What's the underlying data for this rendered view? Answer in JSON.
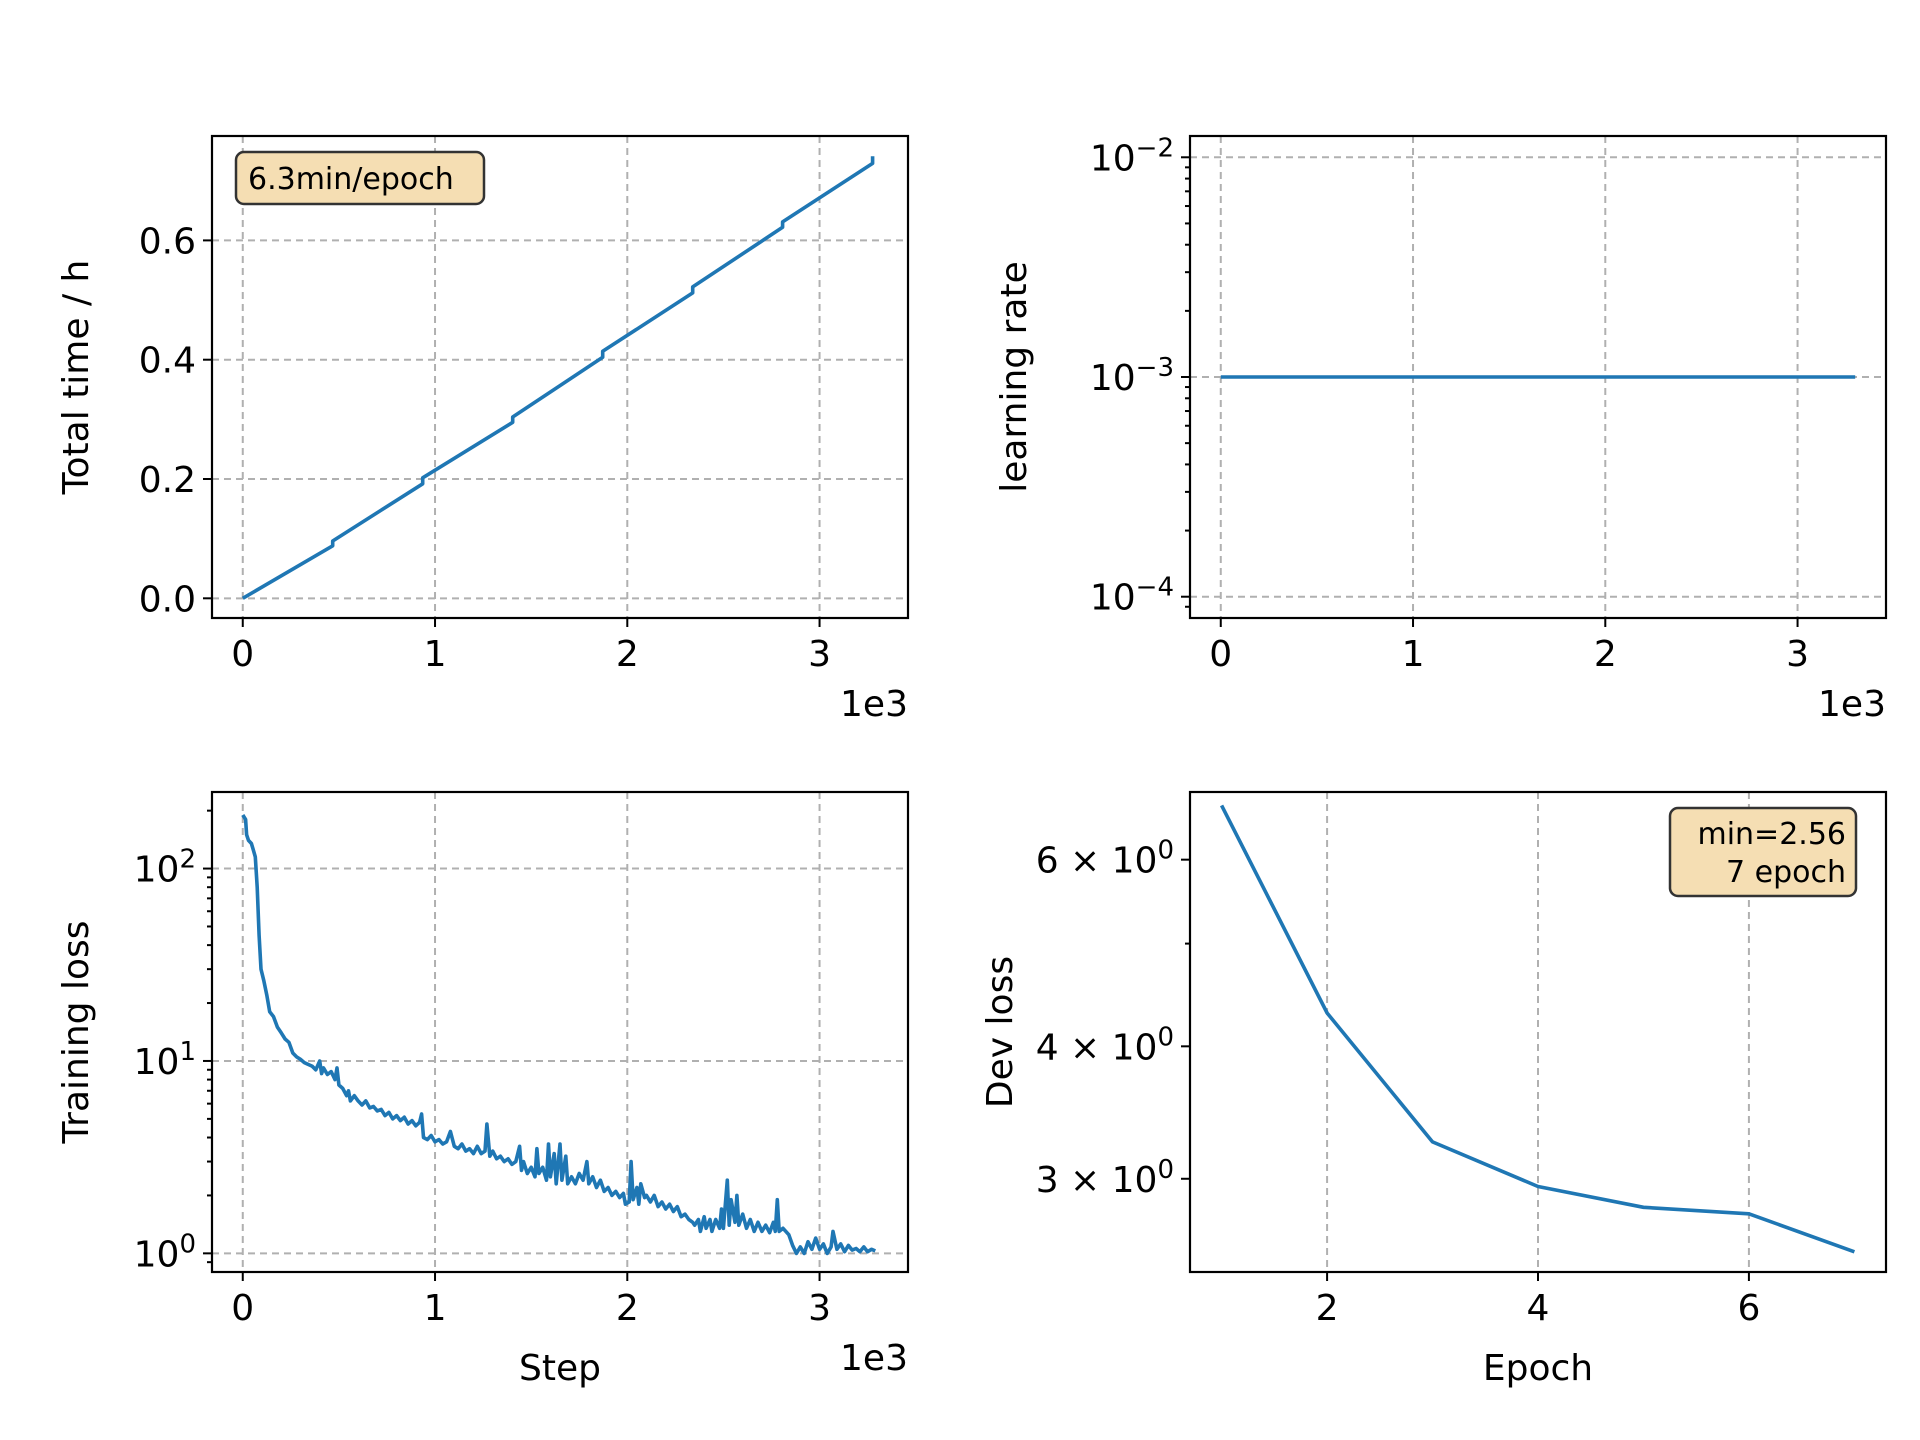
{
  "chart_data": [
    {
      "id": "total_time",
      "type": "line",
      "xscale": "linear",
      "yscale": "linear",
      "xlim": [
        -160,
        3460
      ],
      "ylim": [
        -0.033,
        0.775
      ],
      "xticks": [
        0,
        1000,
        2000,
        3000
      ],
      "xtick_labels": [
        "0",
        "1",
        "2",
        "3"
      ],
      "yticks": [
        0.0,
        0.2,
        0.4,
        0.6
      ],
      "ytick_labels": [
        "0.0",
        "0.2",
        "0.4",
        "0.6"
      ],
      "x_offset_label": "1e3",
      "xlabel": "",
      "ylabel": "Total time / h",
      "grid": true,
      "annotation": "6.3min/epoch",
      "annotation_position": "top-left",
      "series": [
        {
          "color": "#1f77b4",
          "points": [
            [
              0,
              0.0
            ],
            [
              468,
              0.088
            ],
            [
              468,
              0.096
            ],
            [
              936,
              0.192
            ],
            [
              936,
              0.202
            ],
            [
              1404,
              0.295
            ],
            [
              1404,
              0.304
            ],
            [
              1872,
              0.404
            ],
            [
              1872,
              0.414
            ],
            [
              2340,
              0.512
            ],
            [
              2340,
              0.522
            ],
            [
              2808,
              0.622
            ],
            [
              2808,
              0.631
            ],
            [
              3276,
              0.729
            ],
            [
              3276,
              0.741
            ]
          ]
        }
      ]
    },
    {
      "id": "learning_rate",
      "type": "line",
      "xscale": "linear",
      "yscale": "log",
      "xlim": [
        -160,
        3460
      ],
      "ylim": [
        8e-05,
        0.0125
      ],
      "xticks": [
        0,
        1000,
        2000,
        3000
      ],
      "xtick_labels": [
        "0",
        "1",
        "2",
        "3"
      ],
      "yticks": [
        0.0001,
        0.001,
        0.01
      ],
      "ytick_labels": [
        [
          "10",
          "−4"
        ],
        [
          "10",
          "−3"
        ],
        [
          "10",
          "−2"
        ]
      ],
      "x_offset_label": "1e3",
      "xlabel": "",
      "ylabel": "learning rate",
      "grid": true,
      "series": [
        {
          "color": "#1f77b4",
          "points": [
            [
              0,
              0.001
            ],
            [
              3300,
              0.001
            ]
          ]
        }
      ]
    },
    {
      "id": "training_loss",
      "type": "line",
      "xscale": "linear",
      "yscale": "log",
      "xlim": [
        -160,
        3460
      ],
      "ylim": [
        0.8,
        250
      ],
      "xticks": [
        0,
        1000,
        2000,
        3000
      ],
      "xtick_labels": [
        "0",
        "1",
        "2",
        "3"
      ],
      "yticks": [
        1,
        10,
        100
      ],
      "ytick_labels": [
        [
          "10",
          "0"
        ],
        [
          "10",
          "1"
        ],
        [
          "10",
          "2"
        ]
      ],
      "x_offset_label": "1e3",
      "xlabel": "Step",
      "ylabel": "Training loss",
      "grid": true,
      "series": [
        {
          "color": "#1f77b4",
          "points": [
            [
              0,
              190
            ],
            [
              15,
              180
            ],
            [
              20,
              150
            ],
            [
              30,
              140
            ],
            [
              45,
              135
            ],
            [
              55,
              125
            ],
            [
              65,
              115
            ],
            [
              75,
              80
            ],
            [
              85,
              45
            ],
            [
              95,
              30
            ],
            [
              110,
              26
            ],
            [
              125,
              22
            ],
            [
              140,
              18
            ],
            [
              160,
              17
            ],
            [
              180,
              15
            ],
            [
              200,
              14
            ],
            [
              220,
              13
            ],
            [
              240,
              12.5
            ],
            [
              260,
              11
            ],
            [
              280,
              10.5
            ],
            [
              300,
              10.2
            ],
            [
              320,
              9.8
            ],
            [
              340,
              9.6
            ],
            [
              360,
              9.4
            ],
            [
              380,
              9.0
            ],
            [
              400,
              10
            ],
            [
              410,
              8.6
            ],
            [
              420,
              9.2
            ],
            [
              440,
              8.5
            ],
            [
              460,
              8.8
            ],
            [
              480,
              8.0
            ],
            [
              490,
              9.2
            ],
            [
              500,
              7.5
            ],
            [
              520,
              7.2
            ],
            [
              540,
              6.6
            ],
            [
              550,
              7.0
            ],
            [
              560,
              6.2
            ],
            [
              580,
              6.6
            ],
            [
              600,
              6.2
            ],
            [
              620,
              5.9
            ],
            [
              640,
              6.2
            ],
            [
              660,
              5.7
            ],
            [
              680,
              5.8
            ],
            [
              700,
              5.5
            ],
            [
              720,
              5.6
            ],
            [
              740,
              5.2
            ],
            [
              760,
              5.4
            ],
            [
              780,
              5.0
            ],
            [
              800,
              5.2
            ],
            [
              820,
              4.9
            ],
            [
              840,
              5.1
            ],
            [
              860,
              4.7
            ],
            [
              880,
              4.9
            ],
            [
              900,
              4.6
            ],
            [
              920,
              4.8
            ],
            [
              930,
              5.3
            ],
            [
              940,
              4.0
            ],
            [
              960,
              3.9
            ],
            [
              980,
              4.1
            ],
            [
              1000,
              3.8
            ],
            [
              1020,
              3.9
            ],
            [
              1040,
              3.7
            ],
            [
              1060,
              3.8
            ],
            [
              1080,
              4.3
            ],
            [
              1100,
              3.6
            ],
            [
              1120,
              3.5
            ],
            [
              1140,
              3.7
            ],
            [
              1160,
              3.4
            ],
            [
              1180,
              3.5
            ],
            [
              1200,
              3.3
            ],
            [
              1220,
              3.6
            ],
            [
              1240,
              3.3
            ],
            [
              1260,
              3.4
            ],
            [
              1270,
              4.7
            ],
            [
              1285,
              3.2
            ],
            [
              1300,
              3.4
            ],
            [
              1320,
              3.1
            ],
            [
              1340,
              3.2
            ],
            [
              1360,
              3.0
            ],
            [
              1380,
              3.1
            ],
            [
              1400,
              2.9
            ],
            [
              1420,
              3.0
            ],
            [
              1440,
              3.6
            ],
            [
              1450,
              2.7
            ],
            [
              1460,
              3.0
            ],
            [
              1480,
              2.6
            ],
            [
              1500,
              2.8
            ],
            [
              1520,
              2.5
            ],
            [
              1530,
              3.5
            ],
            [
              1540,
              2.6
            ],
            [
              1560,
              2.8
            ],
            [
              1580,
              2.4
            ],
            [
              1590,
              3.7
            ],
            [
              1600,
              2.5
            ],
            [
              1620,
              3.3
            ],
            [
              1630,
              2.3
            ],
            [
              1650,
              3.7
            ],
            [
              1660,
              2.4
            ],
            [
              1680,
              3.2
            ],
            [
              1690,
              2.3
            ],
            [
              1710,
              2.5
            ],
            [
              1730,
              2.3
            ],
            [
              1750,
              2.6
            ],
            [
              1770,
              2.4
            ],
            [
              1790,
              3.0
            ],
            [
              1800,
              2.3
            ],
            [
              1820,
              2.5
            ],
            [
              1840,
              2.2
            ],
            [
              1860,
              2.4
            ],
            [
              1880,
              2.1
            ],
            [
              1900,
              2.2
            ],
            [
              1920,
              2.0
            ],
            [
              1940,
              2.1
            ],
            [
              1960,
              1.95
            ],
            [
              1980,
              2.05
            ],
            [
              1990,
              1.8
            ],
            [
              2010,
              1.85
            ],
            [
              2020,
              3.0
            ],
            [
              2030,
              1.9
            ],
            [
              2050,
              2.2
            ],
            [
              2060,
              1.8
            ],
            [
              2070,
              2.3
            ],
            [
              2090,
              1.95
            ],
            [
              2100,
              2.0
            ],
            [
              2120,
              1.85
            ],
            [
              2140,
              2.0
            ],
            [
              2160,
              1.75
            ],
            [
              2180,
              1.85
            ],
            [
              2200,
              1.7
            ],
            [
              2220,
              1.8
            ],
            [
              2240,
              1.65
            ],
            [
              2260,
              1.75
            ],
            [
              2280,
              1.55
            ],
            [
              2300,
              1.6
            ],
            [
              2320,
              1.5
            ],
            [
              2340,
              1.45
            ],
            [
              2350,
              1.4
            ],
            [
              2370,
              1.5
            ],
            [
              2380,
              1.3
            ],
            [
              2400,
              1.55
            ],
            [
              2410,
              1.35
            ],
            [
              2430,
              1.5
            ],
            [
              2440,
              1.3
            ],
            [
              2460,
              1.5
            ],
            [
              2480,
              1.35
            ],
            [
              2490,
              1.7
            ],
            [
              2500,
              1.35
            ],
            [
              2520,
              2.4
            ],
            [
              2530,
              1.4
            ],
            [
              2540,
              1.9
            ],
            [
              2560,
              1.45
            ],
            [
              2570,
              2.0
            ],
            [
              2580,
              1.4
            ],
            [
              2600,
              1.6
            ],
            [
              2620,
              1.35
            ],
            [
              2640,
              1.5
            ],
            [
              2660,
              1.3
            ],
            [
              2680,
              1.45
            ],
            [
              2700,
              1.3
            ],
            [
              2720,
              1.4
            ],
            [
              2740,
              1.28
            ],
            [
              2760,
              1.45
            ],
            [
              2770,
              1.3
            ],
            [
              2780,
              1.9
            ],
            [
              2790,
              1.3
            ],
            [
              2810,
              1.35
            ],
            [
              2840,
              1.25
            ],
            [
              2860,
              1.1
            ],
            [
              2880,
              1.0
            ],
            [
              2900,
              1.08
            ],
            [
              2920,
              1.0
            ],
            [
              2940,
              1.15
            ],
            [
              2960,
              1.05
            ],
            [
              2980,
              1.2
            ],
            [
              3000,
              1.05
            ],
            [
              3020,
              1.12
            ],
            [
              3040,
              1.0
            ],
            [
              3060,
              1.08
            ],
            [
              3070,
              1.3
            ],
            [
              3090,
              1.05
            ],
            [
              3110,
              1.12
            ],
            [
              3130,
              1.02
            ],
            [
              3150,
              1.1
            ],
            [
              3170,
              1.04
            ],
            [
              3190,
              1.06
            ],
            [
              3210,
              1.02
            ],
            [
              3230,
              1.08
            ],
            [
              3250,
              1.02
            ],
            [
              3270,
              1.05
            ],
            [
              3290,
              1.03
            ]
          ]
        }
      ]
    },
    {
      "id": "dev_loss",
      "type": "line",
      "xscale": "linear",
      "yscale": "log",
      "xlim": [
        0.7,
        7.3
      ],
      "ylim": [
        2.45,
        6.95
      ],
      "xticks": [
        2,
        4,
        6
      ],
      "xtick_labels": [
        "2",
        "4",
        "6"
      ],
      "yticks": [
        3,
        4,
        6
      ],
      "ytick_labels": [
        [
          "3 × 10",
          "0"
        ],
        [
          "4 × 10",
          "0"
        ],
        [
          "6 × 10",
          "0"
        ]
      ],
      "yminor": [
        5
      ],
      "xlabel": "Epoch",
      "ylabel": "Dev loss",
      "grid": "x",
      "annotation": [
        "min=2.56",
        "7 epoch"
      ],
      "annotation_position": "top-right",
      "series": [
        {
          "color": "#1f77b4",
          "points": [
            [
              1,
              6.75
            ],
            [
              2,
              4.3
            ],
            [
              3,
              3.25
            ],
            [
              4,
              2.95
            ],
            [
              5,
              2.82
            ],
            [
              6,
              2.78
            ],
            [
              7,
              2.56
            ]
          ]
        }
      ]
    }
  ]
}
